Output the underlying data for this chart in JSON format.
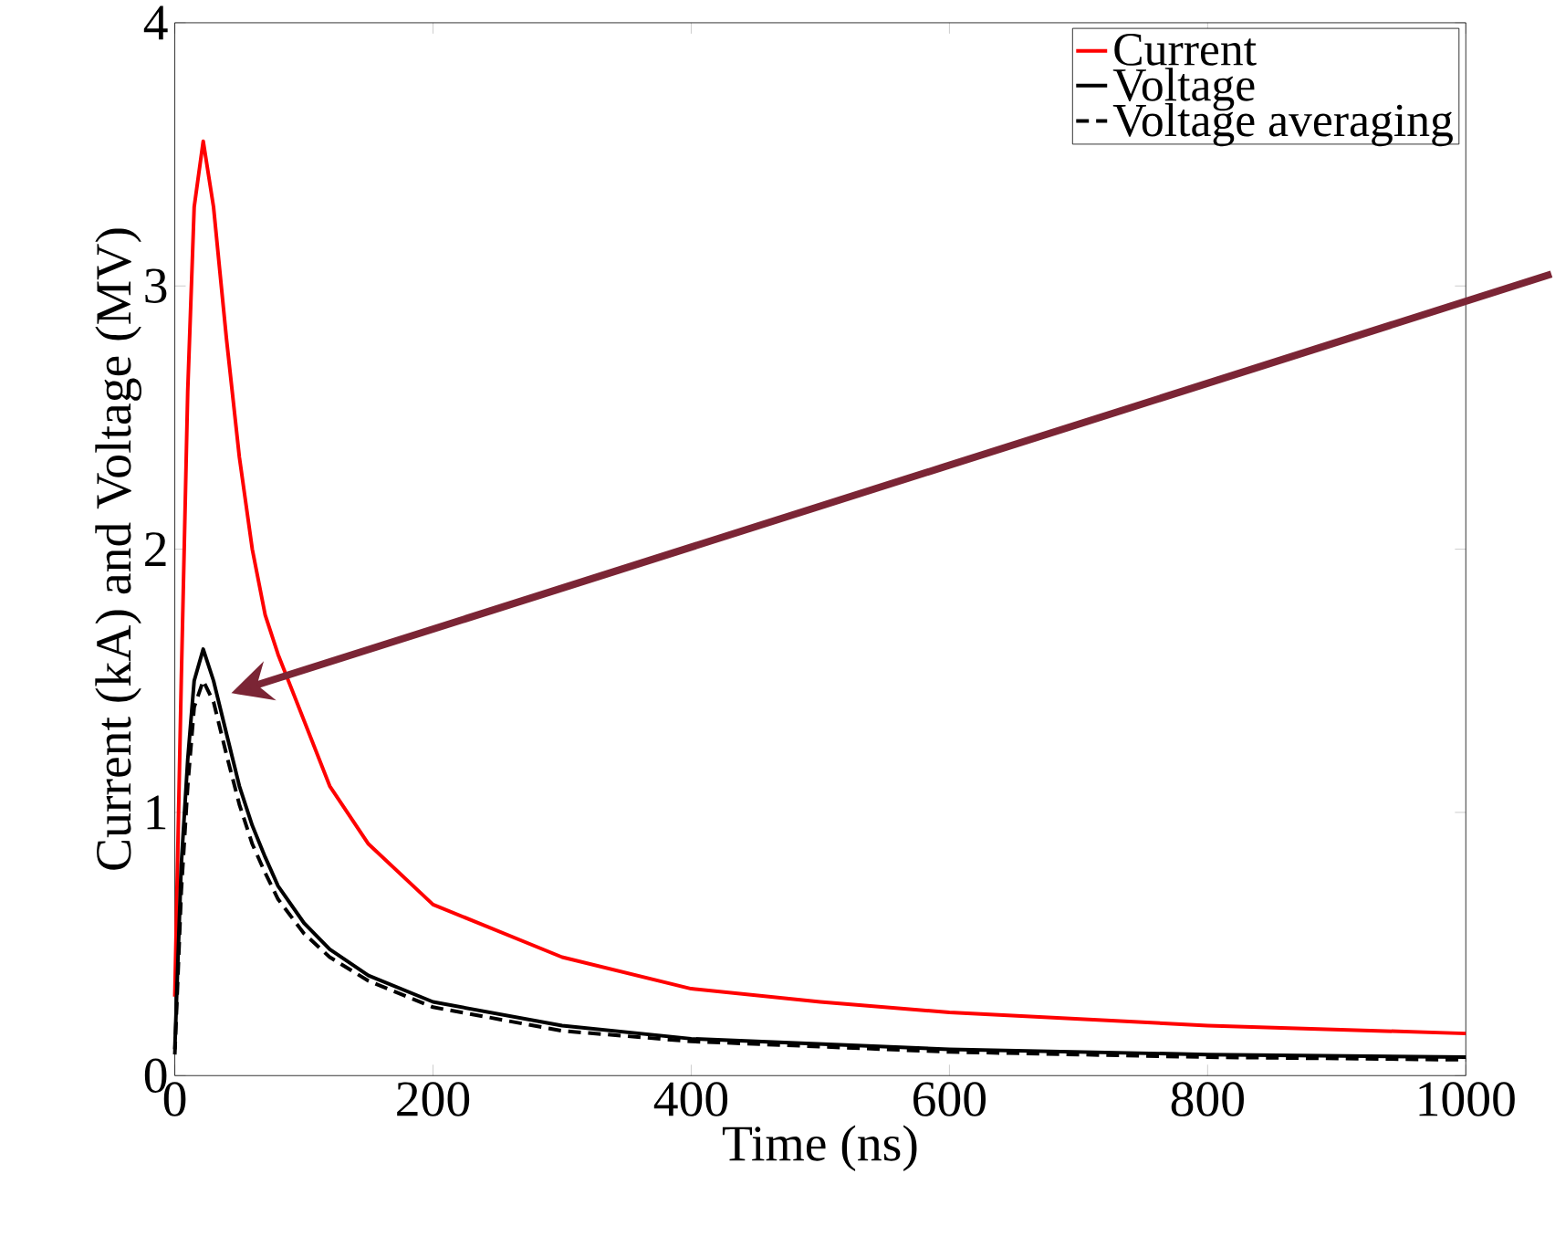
{
  "chart_data": {
    "type": "line",
    "xlabel": "Time (ns)",
    "ylabel": "Current (kA) and Voltage (MV)",
    "xlim": [
      0,
      1000
    ],
    "ylim": [
      0,
      4
    ],
    "xticks": [
      0,
      200,
      400,
      600,
      800,
      1000
    ],
    "yticks": [
      0,
      1,
      2,
      3,
      4
    ],
    "grid": false,
    "legend": "top right",
    "marker": "none",
    "x": [
      0,
      5,
      10,
      15,
      22,
      30,
      40,
      50,
      60,
      70,
      80,
      100,
      120,
      150,
      200,
      300,
      400,
      500,
      600,
      800,
      1000
    ],
    "series": [
      {
        "name": "Current",
        "color": "#ff0000",
        "line_style": "solid",
        "values": [
          0.3,
          1.5,
          2.6,
          3.3,
          3.55,
          3.3,
          2.8,
          2.35,
          2.0,
          1.75,
          1.6,
          1.35,
          1.1,
          0.88,
          0.65,
          0.45,
          0.33,
          0.28,
          0.24,
          0.19,
          0.16
        ]
      },
      {
        "name": "Voltage",
        "color": "#000000",
        "line_style": "solid",
        "values": [
          0.1,
          0.8,
          1.2,
          1.5,
          1.62,
          1.5,
          1.3,
          1.1,
          0.95,
          0.83,
          0.72,
          0.58,
          0.48,
          0.38,
          0.28,
          0.19,
          0.14,
          0.12,
          0.1,
          0.08,
          0.07
        ]
      },
      {
        "name": "Voltage averaging",
        "color": "#000000",
        "line_style": "dashed",
        "values": [
          0.08,
          0.7,
          1.1,
          1.4,
          1.5,
          1.42,
          1.22,
          1.03,
          0.88,
          0.77,
          0.67,
          0.54,
          0.45,
          0.36,
          0.26,
          0.17,
          0.13,
          0.11,
          0.09,
          0.07,
          0.06
        ]
      }
    ]
  }
}
